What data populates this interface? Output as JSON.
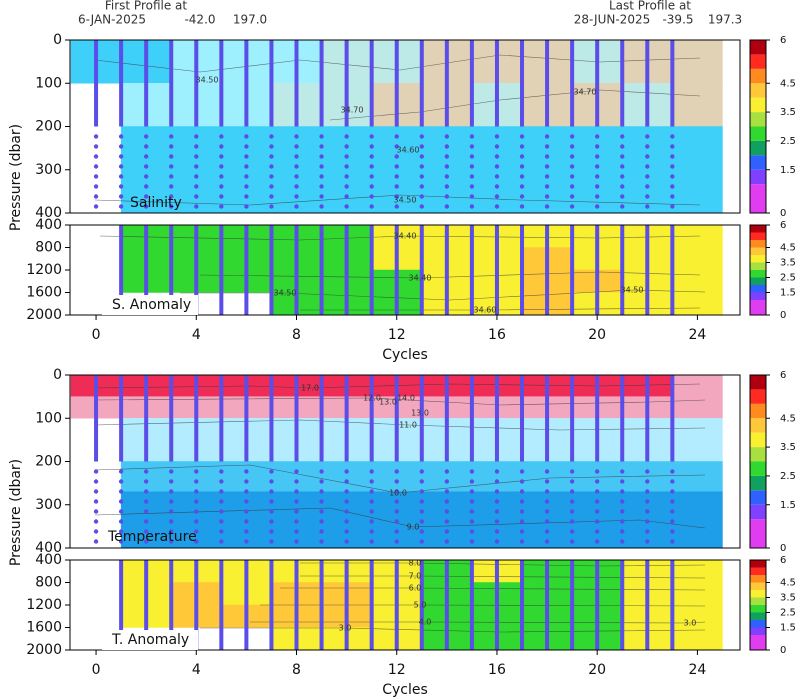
{
  "header": {
    "first_label": "First Profile at",
    "first_date": "6-JAN-2025",
    "first_lat": "-42.0",
    "first_lon": "197.0",
    "last_label": "Last Profile at",
    "last_date": "28-JUN-2025",
    "last_lat": "-39.5",
    "last_lon": "197.3"
  },
  "colorbar": {
    "lim": [
      0,
      6
    ],
    "ticks": [
      0,
      1.5,
      2.5,
      3.5,
      4.5,
      6
    ],
    "bands": [
      {
        "from": 0,
        "to": 1,
        "color": "#e03cf0"
      },
      {
        "from": 1,
        "to": 1.5,
        "color": "#8040ff"
      },
      {
        "from": 1.5,
        "to": 2,
        "color": "#3060ff"
      },
      {
        "from": 2,
        "to": 2.5,
        "color": "#10a060"
      },
      {
        "from": 2.5,
        "to": 3,
        "color": "#30d830"
      },
      {
        "from": 3,
        "to": 3.5,
        "color": "#a8e040"
      },
      {
        "from": 3.5,
        "to": 4,
        "color": "#f8f030"
      },
      {
        "from": 4,
        "to": 4.5,
        "color": "#ffc838"
      },
      {
        "from": 4.5,
        "to": 5,
        "color": "#ff8a20"
      },
      {
        "from": 5,
        "to": 5.5,
        "color": "#ff2a20"
      },
      {
        "from": 5.5,
        "to": 6,
        "color": "#b00010"
      }
    ]
  },
  "chart_data": [
    {
      "type": "heatmap",
      "label": "Salinity",
      "y_label": "Pressure (dbar)",
      "xlim": [
        -1.04,
        25.7
      ],
      "ylim": [
        400,
        0
      ],
      "yticks": [
        0,
        100,
        200,
        300,
        400
      ],
      "x_edges": [
        -1,
        1,
        3,
        5,
        7,
        9,
        11,
        13,
        15,
        17,
        19,
        21,
        23,
        25
      ],
      "y_edges": [
        0,
        100,
        200,
        300,
        400
      ],
      "palette": [
        {
          "min": 34.0,
          "color": "#3fd0fa"
        },
        {
          "min": 34.5,
          "color": "#9ef0ff"
        },
        {
          "min": 34.6,
          "color": "#bde9e6"
        },
        {
          "min": 34.7,
          "color": "#e2d2b5"
        }
      ],
      "values": [
        [
          34.45,
          34.45,
          34.5,
          34.55,
          34.55,
          34.6,
          34.65,
          34.75,
          34.75,
          34.72,
          34.65,
          34.75,
          34.75
        ],
        [
          null,
          34.55,
          34.55,
          34.55,
          34.6,
          34.65,
          34.75,
          34.75,
          34.65,
          34.72,
          34.75,
          34.65,
          34.75
        ],
        [
          null,
          34.45,
          34.45,
          34.45,
          34.45,
          34.45,
          34.45,
          34.45,
          34.45,
          34.45,
          34.45,
          34.45,
          34.45
        ],
        [
          null,
          34.45,
          34.45,
          34.45,
          34.45,
          34.45,
          34.45,
          34.45,
          34.45,
          34.45,
          34.45,
          34.45,
          34.45
        ]
      ],
      "contour_labels": [
        "34.50",
        "34.70",
        "34.60",
        "34.50",
        "34.70"
      ],
      "profile_cycles": [
        0,
        1,
        2,
        3,
        4,
        5,
        6,
        7,
        8,
        9,
        10,
        11,
        12,
        13,
        14,
        15,
        16,
        17,
        18,
        19,
        20,
        21,
        22,
        23
      ]
    },
    {
      "type": "heatmap",
      "label": "S. Anomaly",
      "x_label": "Cycles",
      "xlim": [
        -1.04,
        25.7
      ],
      "ylim": [
        2000,
        400
      ],
      "yticks": [
        400,
        800,
        1200,
        1600,
        2000
      ],
      "xticks": [
        0,
        4,
        8,
        12,
        16,
        20,
        24
      ],
      "x_edges": [
        -1,
        1,
        3,
        5,
        7,
        9,
        11,
        13,
        15,
        17,
        19,
        21,
        23,
        25
      ],
      "y_edges": [
        400,
        800,
        1200,
        1600,
        2000
      ],
      "values": [
        [
          null,
          2.7,
          2.7,
          2.7,
          2.7,
          2.7,
          3.7,
          3.7,
          3.7,
          3.7,
          3.7,
          3.7,
          3.7
        ],
        [
          null,
          2.7,
          2.7,
          2.7,
          2.7,
          2.7,
          3.7,
          3.7,
          3.7,
          4.2,
          3.7,
          3.7,
          3.7
        ],
        [
          null,
          2.7,
          2.7,
          2.7,
          2.7,
          2.7,
          2.7,
          3.7,
          3.7,
          4.2,
          4.2,
          3.7,
          3.7
        ],
        [
          null,
          null,
          null,
          null,
          2.7,
          2.7,
          2.7,
          3.7,
          3.7,
          4.2,
          3.7,
          3.7,
          3.7
        ]
      ],
      "contour_labels": [
        "34.40",
        "34.40",
        "34.50",
        "34.50",
        "34.60"
      ],
      "profile_cycles": [
        1,
        2,
        3,
        4,
        5,
        6,
        7,
        8,
        9,
        10,
        11,
        12,
        13,
        14,
        15,
        16,
        17,
        18,
        19,
        20,
        21,
        22,
        23
      ]
    },
    {
      "type": "heatmap",
      "label": "Temperature",
      "y_label": "Pressure (dbar)",
      "xlim": [
        -1.04,
        25.7
      ],
      "ylim": [
        400,
        0
      ],
      "yticks": [
        0,
        100,
        200,
        300,
        400
      ],
      "x_edges": [
        -1,
        1,
        3,
        5,
        7,
        9,
        11,
        13,
        15,
        17,
        19,
        21,
        23,
        25
      ],
      "y_edges": [
        0,
        50,
        100,
        200,
        270,
        400
      ],
      "palette": [
        {
          "min": 7,
          "color": "#1e9de8"
        },
        {
          "min": 9,
          "color": "#46c6f5"
        },
        {
          "min": 10,
          "color": "#b3ecff"
        },
        {
          "min": 12,
          "color": "#f3a7bf"
        },
        {
          "min": 15,
          "color": "#ef2c56"
        }
      ],
      "values": [
        [
          16,
          16,
          16,
          16,
          16,
          16,
          16,
          16,
          16,
          16,
          16,
          16,
          13.5
        ],
        [
          13.5,
          13.5,
          13.5,
          13.5,
          13.5,
          13.5,
          13.5,
          13.5,
          13.5,
          13.5,
          13.5,
          13.5,
          13.5
        ],
        [
          null,
          11,
          11,
          11,
          11,
          11,
          11,
          11,
          11,
          11,
          11,
          11,
          11
        ],
        [
          null,
          9.5,
          9.5,
          9.5,
          9.5,
          9.5,
          9.5,
          9.5,
          9.5,
          9.5,
          9.5,
          9.5,
          9.5
        ],
        [
          null,
          8.5,
          8.5,
          8.5,
          8.5,
          8.5,
          8.5,
          8.5,
          8.5,
          8.5,
          8.5,
          8.5,
          8.5
        ]
      ],
      "contour_labels": [
        "17.0",
        "12.0",
        "13.0",
        "14.0",
        "13.0",
        "11.0",
        "10.0",
        "9.0"
      ],
      "profile_cycles": [
        0,
        1,
        2,
        3,
        4,
        5,
        6,
        7,
        8,
        9,
        10,
        11,
        12,
        13,
        14,
        15,
        16,
        17,
        18,
        19,
        20,
        21,
        22,
        23
      ]
    },
    {
      "type": "heatmap",
      "label": "T. Anomaly",
      "x_label": "Cycles",
      "xlim": [
        -1.04,
        25.7
      ],
      "ylim": [
        2000,
        400
      ],
      "yticks": [
        400,
        800,
        1200,
        1600,
        2000
      ],
      "xticks": [
        0,
        4,
        8,
        12,
        16,
        20,
        24
      ],
      "x_edges": [
        -1,
        1,
        3,
        5,
        7,
        9,
        11,
        13,
        15,
        17,
        19,
        21,
        23,
        25
      ],
      "y_edges": [
        400,
        800,
        1200,
        1600,
        2000
      ],
      "values": [
        [
          null,
          3.7,
          3.7,
          3.7,
          3.7,
          3.7,
          3.7,
          2.7,
          3.7,
          2.7,
          2.7,
          3.7,
          3.7
        ],
        [
          null,
          3.7,
          4.2,
          3.7,
          4.2,
          4.2,
          3.7,
          2.7,
          2.7,
          2.7,
          2.7,
          3.7,
          3.7
        ],
        [
          null,
          3.7,
          4.2,
          4.2,
          4.2,
          4.2,
          3.7,
          2.7,
          2.7,
          2.7,
          2.7,
          3.7,
          3.7
        ],
        [
          null,
          null,
          null,
          null,
          3.7,
          3.7,
          3.7,
          2.7,
          2.7,
          2.7,
          2.7,
          3.7,
          3.7
        ]
      ],
      "contour_labels": [
        "8.0",
        "7.0",
        "6.0",
        "5.0",
        "4.0",
        "3.0",
        "3.0"
      ],
      "profile_cycles": [
        1,
        2,
        3,
        4,
        5,
        6,
        7,
        8,
        9,
        10,
        11,
        12,
        13,
        14,
        15,
        16,
        17,
        18,
        19,
        20,
        21,
        22,
        23
      ]
    }
  ]
}
